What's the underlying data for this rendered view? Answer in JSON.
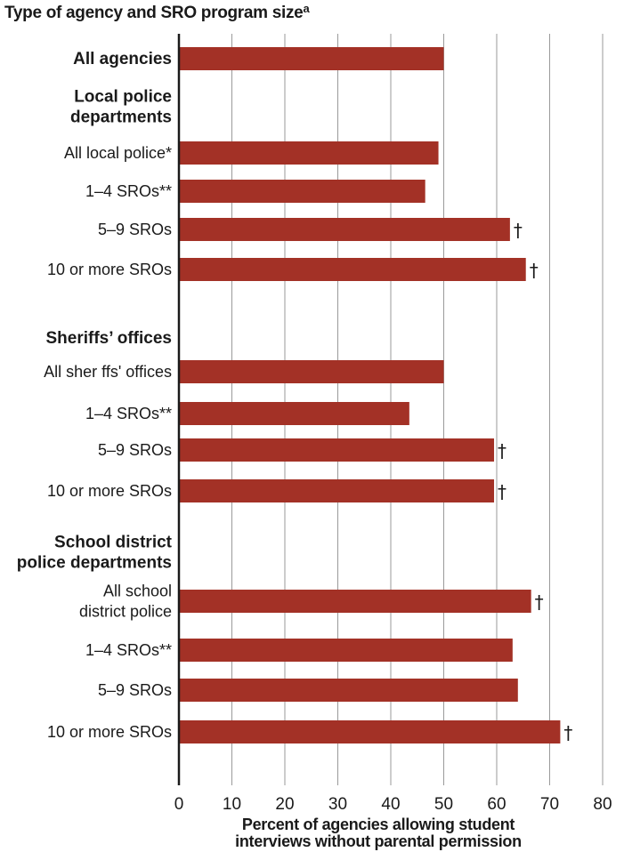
{
  "chart_data": {
    "type": "bar",
    "orientation": "horizontal",
    "title": "Type of agency and SRO program size",
    "title_superscript": "a",
    "xlabel_lines": [
      "Percent of agencies allowing student",
      "interviews without parental permission"
    ],
    "xlim": [
      0,
      80
    ],
    "xticks": [
      "0",
      "10",
      "20",
      "30",
      "40",
      "50",
      "60",
      "70",
      "80"
    ],
    "grid": "vertical",
    "bar_color": "#a33126",
    "rows": [
      {
        "type": "bar",
        "lines": [
          "All agencies"
        ],
        "bold": true,
        "value": 50,
        "marker": ""
      },
      {
        "type": "header",
        "lines": [
          "Local police",
          "departments"
        ]
      },
      {
        "type": "bar",
        "lines": [
          "All local police*"
        ],
        "bold": false,
        "value": 49,
        "marker": ""
      },
      {
        "type": "bar",
        "lines": [
          "1–4 SROs**"
        ],
        "bold": false,
        "value": 46.5,
        "marker": ""
      },
      {
        "type": "bar",
        "lines": [
          "5–9 SROs"
        ],
        "bold": false,
        "value": 62.5,
        "marker": "†"
      },
      {
        "type": "bar",
        "lines": [
          "10 or more SROs"
        ],
        "bold": false,
        "value": 65.5,
        "marker": "†"
      },
      {
        "type": "header",
        "lines": [
          "Sheriffs’ offices"
        ]
      },
      {
        "type": "bar",
        "lines": [
          "All sher ffs' offices"
        ],
        "bold": false,
        "value": 50,
        "marker": ""
      },
      {
        "type": "bar",
        "lines": [
          "1–4 SROs**"
        ],
        "bold": false,
        "value": 43.5,
        "marker": ""
      },
      {
        "type": "bar",
        "lines": [
          "5–9 SROs"
        ],
        "bold": false,
        "value": 59.5,
        "marker": "†"
      },
      {
        "type": "bar",
        "lines": [
          "10 or more SROs"
        ],
        "bold": false,
        "value": 59.5,
        "marker": "†"
      },
      {
        "type": "header",
        "lines": [
          "School district",
          "police departments"
        ]
      },
      {
        "type": "bar",
        "lines": [
          "All school",
          "district police"
        ],
        "bold": false,
        "value": 66.5,
        "marker": "†"
      },
      {
        "type": "bar",
        "lines": [
          "1–4 SROs**"
        ],
        "bold": false,
        "value": 63,
        "marker": ""
      },
      {
        "type": "bar",
        "lines": [
          "5–9 SROs"
        ],
        "bold": false,
        "value": 64,
        "marker": ""
      },
      {
        "type": "bar",
        "lines": [
          "10 or more SROs"
        ],
        "bold": false,
        "value": 72,
        "marker": "†"
      }
    ]
  }
}
